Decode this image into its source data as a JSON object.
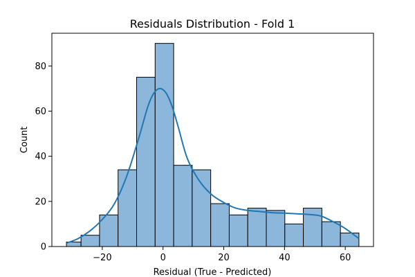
{
  "chart_data": {
    "type": "bar",
    "title": "Residuals Distribution - Fold 1",
    "xlabel": "Residual (True - Predicted)",
    "ylabel": "Count",
    "xlim": [
      -36.6,
      69.3
    ],
    "ylim": [
      0,
      94.5
    ],
    "xticks": [
      -20,
      0,
      20,
      40,
      60
    ],
    "yticks": [
      0,
      20,
      40,
      60,
      80
    ],
    "grid": false,
    "colors": {
      "bar_fill": "#8cb6da",
      "bar_edge": "#000000",
      "kde_line": "#1f77b4"
    },
    "bins": [
      {
        "x0": -31.8,
        "x1": -27.0,
        "count": 2
      },
      {
        "x0": -27.0,
        "x1": -20.9,
        "count": 5
      },
      {
        "x0": -20.9,
        "x1": -14.8,
        "count": 14
      },
      {
        "x0": -14.8,
        "x1": -8.7,
        "count": 34
      },
      {
        "x0": -8.7,
        "x1": -2.6,
        "count": 75
      },
      {
        "x0": -2.6,
        "x1": 3.5,
        "count": 90
      },
      {
        "x0": 3.5,
        "x1": 9.6,
        "count": 36
      },
      {
        "x0": 9.6,
        "x1": 15.7,
        "count": 34
      },
      {
        "x0": 15.7,
        "x1": 21.8,
        "count": 19
      },
      {
        "x0": 21.8,
        "x1": 27.9,
        "count": 14
      },
      {
        "x0": 27.9,
        "x1": 34.0,
        "count": 17
      },
      {
        "x0": 34.0,
        "x1": 40.1,
        "count": 16
      },
      {
        "x0": 40.1,
        "x1": 46.2,
        "count": 10
      },
      {
        "x0": 46.2,
        "x1": 52.3,
        "count": 17
      },
      {
        "x0": 52.3,
        "x1": 58.4,
        "count": 11
      },
      {
        "x0": 58.4,
        "x1": 64.5,
        "count": 6
      }
    ],
    "kde": {
      "x": [
        -31.8,
        -28,
        -24,
        -20,
        -16,
        -12,
        -8,
        -5,
        -3,
        -1,
        1,
        3,
        5,
        8,
        12,
        16,
        20,
        24,
        28,
        32,
        36,
        40,
        44,
        48,
        52,
        56,
        60,
        64.5
      ],
      "y": [
        1.5,
        3.5,
        7,
        12,
        19,
        31,
        48,
        62,
        68,
        70,
        68,
        62,
        53,
        39,
        29,
        23,
        19.5,
        17,
        16,
        15.5,
        15,
        14.8,
        14.5,
        14.2,
        13.5,
        11,
        8,
        3.5
      ]
    }
  }
}
